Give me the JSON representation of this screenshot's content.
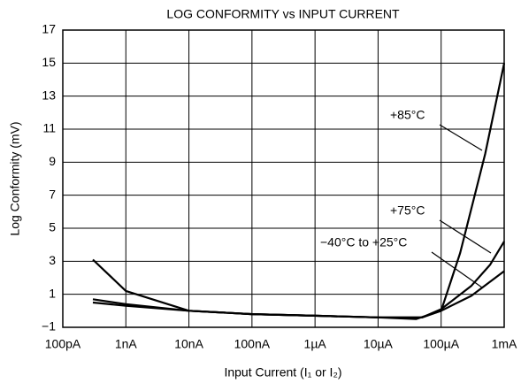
{
  "chart_data": {
    "type": "line",
    "title": "LOG CONFORMITY vs INPUT CURRENT",
    "x_label": "Input Current (I₁ or I₂)",
    "y_label": "Log Conformity (mV)",
    "log_x": true,
    "grid": true,
    "xlim": [
      1e-10,
      0.001
    ],
    "xticks": [
      {
        "value": 1e-10,
        "label": "100pA"
      },
      {
        "value": 1e-09,
        "label": "1nA"
      },
      {
        "value": 1e-08,
        "label": "10nA"
      },
      {
        "value": 1e-07,
        "label": "100nA"
      },
      {
        "value": 1e-06,
        "label": "1µA"
      },
      {
        "value": 1e-05,
        "label": "10µA"
      },
      {
        "value": 0.0001,
        "label": "100µA"
      },
      {
        "value": 0.001,
        "label": "1mA"
      }
    ],
    "ylim": [
      -1,
      17
    ],
    "yticks": [
      {
        "value": -1,
        "label": "−1"
      },
      1,
      3,
      5,
      7,
      9,
      11,
      13,
      15,
      17
    ],
    "series": [
      {
        "name": "+85°C",
        "color": "#000000",
        "x": [
          3e-10,
          1e-09,
          1e-08,
          1e-07,
          1e-06,
          1e-05,
          5e-05,
          0.0001,
          0.0002,
          0.0005,
          0.001
        ],
        "values": [
          3.1,
          1.2,
          0,
          -0.2,
          -0.3,
          -0.4,
          -0.4,
          0,
          3.5,
          9.5,
          15
        ]
      },
      {
        "name": "+75°C",
        "color": "#000000",
        "x": [
          3e-10,
          1e-09,
          1e-08,
          1e-07,
          1e-06,
          1e-05,
          5e-05,
          0.0001,
          0.0003,
          0.0006,
          0.001
        ],
        "values": [
          0.7,
          0.4,
          0,
          -0.2,
          -0.3,
          -0.4,
          -0.4,
          0.1,
          1.5,
          2.8,
          4.2
        ]
      },
      {
        "name": "−40°C to +25°C",
        "color": "#000000",
        "x": [
          3e-10,
          1e-09,
          1e-08,
          1e-07,
          1e-06,
          1e-05,
          4e-05,
          0.0001,
          0.0003,
          0.001
        ],
        "values": [
          0.5,
          0.3,
          0,
          -0.2,
          -0.3,
          -0.4,
          -0.5,
          0,
          0.9,
          2.4
        ]
      }
    ]
  }
}
